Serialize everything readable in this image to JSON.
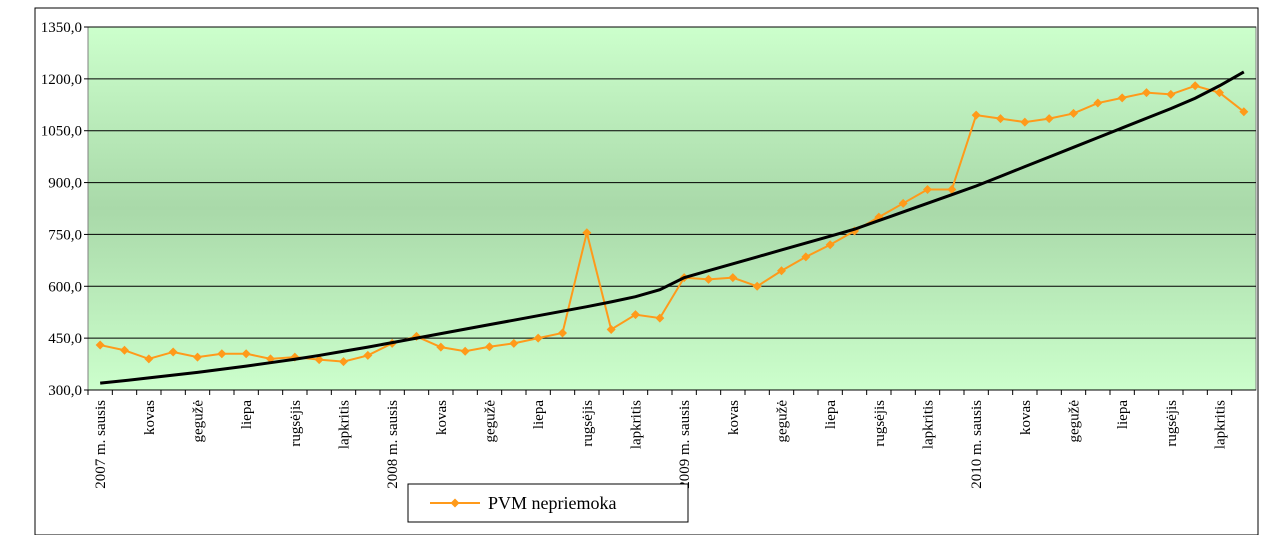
{
  "chart_data": {
    "type": "line",
    "categories": [
      "2007 m. sausis",
      null,
      "kovas",
      null,
      "gegužė",
      null,
      "liepa",
      null,
      "rugsėjis",
      null,
      "lapkritis",
      null,
      "2008 m. sausis",
      null,
      "kovas",
      null,
      "gegužė",
      null,
      "liepa",
      null,
      "rugsėjis",
      null,
      "lapkritis",
      null,
      "2009 m. sausis",
      null,
      "kovas",
      null,
      "gegužė",
      null,
      "liepa",
      null,
      "rugsėjis",
      null,
      "lapkritis",
      null,
      "2010 m. sausis",
      null,
      "kovas",
      null,
      "gegužė",
      null,
      "liepa",
      null,
      "rugsėjis",
      null,
      "lapkritis",
      null
    ],
    "series": [
      {
        "name": "PVM nepriemoka",
        "color": "#ff9a1a",
        "marker": "diamond",
        "values": [
          430,
          415,
          390,
          410,
          395,
          405,
          405,
          390,
          395,
          388,
          382,
          400,
          435,
          455,
          424,
          412,
          425,
          435,
          450,
          465,
          755,
          475,
          518,
          508,
          625,
          620,
          625,
          600,
          645,
          685,
          720,
          760,
          800,
          840,
          880,
          880,
          1095,
          1085,
          1075,
          1085,
          1100,
          1130,
          1145,
          1160,
          1155,
          1180,
          1160,
          1105
        ]
      },
      {
        "color": "#000000",
        "values": [
          320,
          327,
          335,
          343,
          351,
          360,
          369,
          379,
          389,
          400,
          412,
          424,
          437,
          450,
          463,
          476,
          489,
          502,
          515,
          528,
          541,
          555,
          570,
          590,
          625,
          645,
          665,
          685,
          705,
          725,
          745,
          765,
          790,
          815,
          840,
          865,
          890,
          918,
          946,
          974,
          1002,
          1030,
          1058,
          1086,
          1114,
          1144,
          1180,
          1220
        ]
      }
    ],
    "ylim": [
      300,
      1350
    ],
    "yticks": [
      {
        "value": 300,
        "label": "300,0"
      },
      {
        "value": 450,
        "label": "450,0"
      },
      {
        "value": 600,
        "label": "600,0"
      },
      {
        "value": 750,
        "label": "750,0"
      },
      {
        "value": 900,
        "label": "900,0"
      },
      {
        "value": 1050,
        "label": "1050,0"
      },
      {
        "value": 1200,
        "label": "1200,0"
      },
      {
        "value": 1350,
        "label": "1350,0"
      }
    ],
    "grid": true,
    "legend": "bottom"
  }
}
